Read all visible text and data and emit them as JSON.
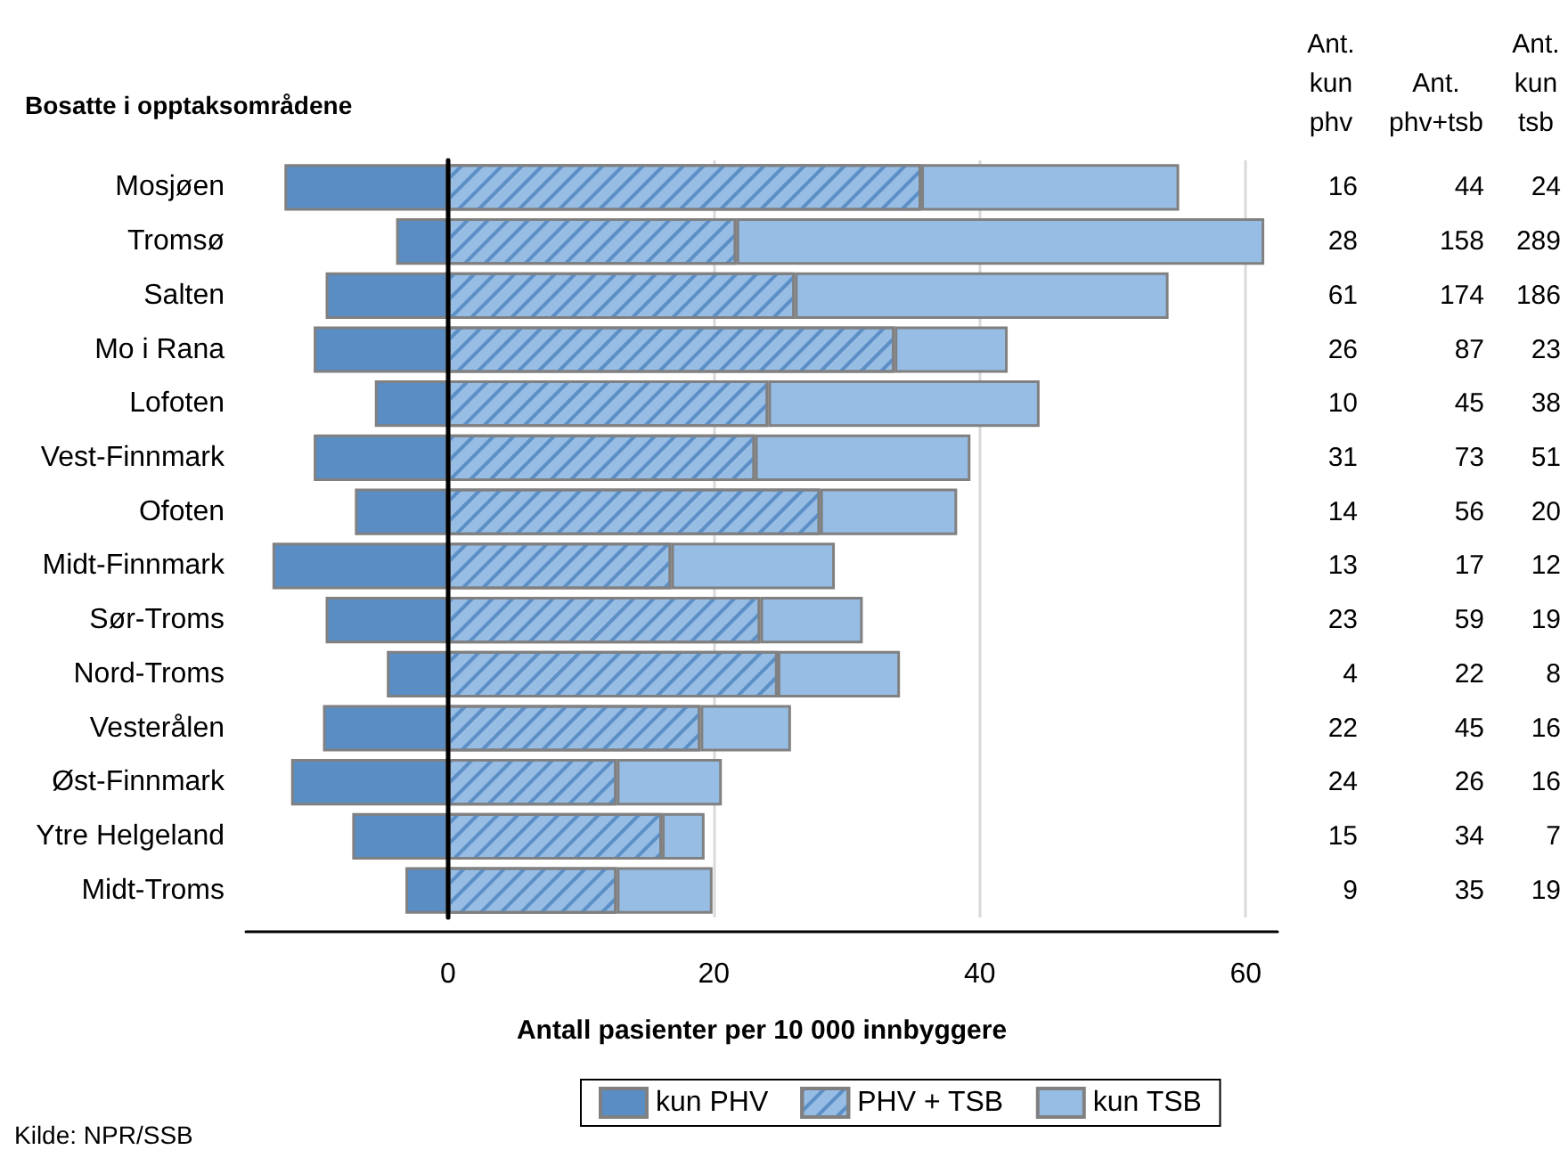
{
  "chart_data": [
    {
      "type": "bar",
      "orientation": "horizontal",
      "stacked": true,
      "ylabel": "Bosatte i opptaksområdene",
      "xlabel": "Antall pasienter per 10 000 innbyggere",
      "categories": [
        "Mosjøen",
        "Tromsø",
        "Salten",
        "Mo i Rana",
        "Lofoten",
        "Vest-Finnmark",
        "Ofoten",
        "Midt-Finnmark",
        "Sør-Troms",
        "Nord-Troms",
        "Vesterålen",
        "Øst-Finnmark",
        "Ytre Helgeland",
        "Midt-Troms"
      ],
      "series": [
        {
          "name": "kun PHV",
          "color": "#5a8dc4",
          "values": [
            -12.3,
            -3.9,
            -9.2,
            -10.1,
            -5.5,
            -10.1,
            -7.0,
            -13.2,
            -9.2,
            -4.6,
            -9.4,
            -11.8,
            -7.2,
            -3.2
          ]
        },
        {
          "name": "PHV + TSB",
          "color": "#97bde5",
          "values": [
            35.6,
            21.7,
            26.1,
            33.6,
            24.1,
            23.1,
            28.0,
            16.8,
            23.5,
            24.8,
            19.0,
            12.7,
            16.1,
            12.7
          ]
        },
        {
          "name": "kun TSB",
          "color": "#97bde5",
          "values": [
            19.4,
            39.7,
            28.1,
            8.5,
            20.4,
            16.2,
            10.3,
            12.3,
            7.7,
            9.2,
            6.8,
            7.9,
            3.2,
            7.2
          ]
        }
      ],
      "xlim": [
        -15.2,
        62.4
      ],
      "xticks": [
        0,
        20,
        40,
        60
      ],
      "grid": "x",
      "legend": "bottom",
      "annotations": [
        "Kilde: NPR/SSB"
      ]
    },
    {
      "type": "other",
      "annotations": [
        "Ant.\nkun\nphv",
        "Ant.\nphv+tsb",
        "Ant.\nkun\ntsb",
        "16",
        "44",
        "24",
        "28",
        "158",
        "289",
        "61",
        "174",
        "186",
        "26",
        "87",
        "23",
        "10",
        "45",
        "38",
        "31",
        "73",
        "51",
        "14",
        "56",
        "20",
        "13",
        "17",
        "12",
        "23",
        "59",
        "19",
        "4",
        "22",
        "8",
        "22",
        "45",
        "16",
        "24",
        "26",
        "16",
        "15",
        "34",
        "7",
        "9",
        "35",
        "19"
      ]
    }
  ]
}
